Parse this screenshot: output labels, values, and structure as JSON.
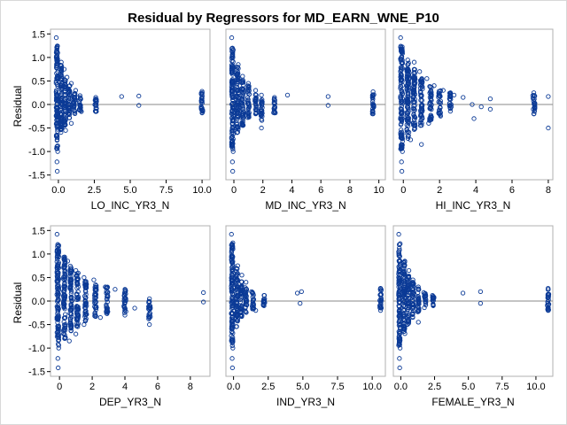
{
  "title": "Residual by Regressors for MD_EARN_WNE_P10",
  "ylabel": "Residual",
  "colors": {
    "marker": "#0b3a96",
    "reference_line": "#8a8a8a",
    "frame": "#b0b0b0"
  },
  "chart_data": [
    {
      "type": "scatter",
      "xlabel": "LO_INC_YR3_N",
      "xticks": [
        "0.0",
        "2.5",
        "5.0",
        "7.5",
        "10.0"
      ],
      "xtick_values": [
        0,
        2.5,
        5,
        7.5,
        10
      ],
      "xlim": [
        -0.55,
        10.55
      ],
      "ylabel": "Residual",
      "yticks": [
        "-1.5",
        "-1.0",
        "-0.5",
        "0.0",
        "0.5",
        "1.0",
        "1.5"
      ],
      "ytick_values": [
        -1.5,
        -1,
        -0.5,
        0,
        0.5,
        1,
        1.5
      ],
      "ylim": [
        -1.6,
        1.6
      ],
      "reference_line_y": 0,
      "points": [
        [
          -0.15,
          1.42
        ],
        [
          -0.1,
          1.2
        ],
        [
          -0.05,
          -1.0
        ],
        [
          -0.1,
          -1.22
        ],
        [
          -0.08,
          -1.42
        ],
        [
          0.2,
          0.9
        ],
        [
          0.4,
          0.75
        ],
        [
          0.6,
          0.58
        ],
        [
          0.9,
          0.45
        ],
        [
          1.2,
          0.3
        ],
        [
          0.5,
          -0.55
        ],
        [
          0.9,
          -0.4
        ],
        [
          1.4,
          0.15
        ],
        [
          1.6,
          -0.15
        ],
        [
          2.6,
          0.15
        ],
        [
          2.6,
          -0.15
        ],
        [
          4.4,
          0.17
        ],
        [
          5.6,
          0.18
        ],
        [
          5.6,
          -0.02
        ],
        [
          10.0,
          0.28
        ],
        [
          10.0,
          -0.18
        ]
      ],
      "clusters": [
        {
          "x": -0.1,
          "y_range": [
            -0.95,
            1.25
          ]
        },
        {
          "x": 0.2,
          "y_range": [
            -0.6,
            0.85
          ]
        },
        {
          "x": 0.45,
          "y_range": [
            -0.45,
            0.55
          ]
        },
        {
          "x": 0.75,
          "y_range": [
            -0.3,
            0.4
          ]
        },
        {
          "x": 1.1,
          "y_range": [
            -0.2,
            0.25
          ]
        },
        {
          "x": 1.5,
          "y_range": [
            -0.15,
            0.2
          ]
        },
        {
          "x": 2.6,
          "y_range": [
            -0.15,
            0.15
          ]
        },
        {
          "x": 10.0,
          "y_range": [
            -0.2,
            0.28
          ]
        }
      ]
    },
    {
      "type": "scatter",
      "xlabel": "MD_INC_YR3_N",
      "xticks": [
        "0",
        "2",
        "4",
        "6",
        "8",
        "10"
      ],
      "xtick_values": [
        0,
        2,
        4,
        6,
        8,
        10
      ],
      "xlim": [
        -0.55,
        10.45
      ],
      "ylim": [
        -1.6,
        1.6
      ],
      "reference_line_y": 0,
      "points": [
        [
          -0.15,
          1.42
        ],
        [
          -0.1,
          1.2
        ],
        [
          -0.05,
          -1.0
        ],
        [
          -0.1,
          -1.22
        ],
        [
          -0.08,
          -1.42
        ],
        [
          0.3,
          0.85
        ],
        [
          0.6,
          0.6
        ],
        [
          1.0,
          0.45
        ],
        [
          1.5,
          0.3
        ],
        [
          1.9,
          -0.5
        ],
        [
          1.9,
          0.2
        ],
        [
          2.8,
          0.15
        ],
        [
          2.8,
          -0.18
        ],
        [
          3.7,
          0.2
        ],
        [
          6.5,
          0.17
        ],
        [
          6.5,
          -0.02
        ],
        [
          9.6,
          0.27
        ],
        [
          9.6,
          -0.2
        ]
      ],
      "clusters": [
        {
          "x": -0.1,
          "y_range": [
            -0.95,
            1.25
          ]
        },
        {
          "x": 0.25,
          "y_range": [
            -0.6,
            0.85
          ]
        },
        {
          "x": 0.6,
          "y_range": [
            -0.45,
            0.55
          ]
        },
        {
          "x": 1.0,
          "y_range": [
            -0.3,
            0.4
          ]
        },
        {
          "x": 1.5,
          "y_range": [
            -0.2,
            0.25
          ]
        },
        {
          "x": 1.9,
          "y_range": [
            -0.35,
            0.15
          ]
        },
        {
          "x": 2.8,
          "y_range": [
            -0.18,
            0.15
          ]
        },
        {
          "x": 9.6,
          "y_range": [
            -0.2,
            0.27
          ]
        }
      ]
    },
    {
      "type": "scatter",
      "xlabel": "HI_INC_YR3_N",
      "xticks": [
        "0",
        "2",
        "4",
        "6",
        "8"
      ],
      "xtick_values": [
        0,
        2,
        4,
        6,
        8
      ],
      "xlim": [
        -0.55,
        8.25
      ],
      "ylim": [
        -1.6,
        1.6
      ],
      "reference_line_y": 0,
      "points": [
        [
          -0.15,
          1.42
        ],
        [
          -0.1,
          1.2
        ],
        [
          -0.05,
          -1.0
        ],
        [
          -0.1,
          -1.22
        ],
        [
          -0.08,
          -1.42
        ],
        [
          0.6,
          0.9
        ],
        [
          0.9,
          0.7
        ],
        [
          1.3,
          0.55
        ],
        [
          1.7,
          0.4
        ],
        [
          2.2,
          0.3
        ],
        [
          2.8,
          0.2
        ],
        [
          3.3,
          0.15
        ],
        [
          3.8,
          0.0
        ],
        [
          4.3,
          -0.05
        ],
        [
          4.8,
          0.12
        ],
        [
          4.8,
          -0.1
        ],
        [
          3.9,
          -0.3
        ],
        [
          1.4,
          -0.4
        ],
        [
          7.2,
          0.25
        ],
        [
          7.2,
          -0.2
        ],
        [
          8.0,
          0.17
        ],
        [
          8.0,
          -0.5
        ],
        [
          1.0,
          -0.85
        ],
        [
          0.4,
          -0.75
        ]
      ],
      "clusters": [
        {
          "x": -0.1,
          "y_range": [
            -0.95,
            1.25
          ]
        },
        {
          "x": 0.25,
          "y_range": [
            -0.75,
            0.95
          ]
        },
        {
          "x": 0.6,
          "y_range": [
            -0.55,
            0.75
          ]
        },
        {
          "x": 1.0,
          "y_range": [
            -0.45,
            0.55
          ]
        },
        {
          "x": 1.5,
          "y_range": [
            -0.35,
            0.4
          ]
        },
        {
          "x": 2.0,
          "y_range": [
            -0.25,
            0.3
          ]
        },
        {
          "x": 2.6,
          "y_range": [
            -0.2,
            0.25
          ]
        },
        {
          "x": 7.2,
          "y_range": [
            -0.2,
            0.25
          ]
        }
      ]
    },
    {
      "type": "scatter",
      "xlabel": "DEP_YR3_N",
      "xticks": [
        "0",
        "2",
        "4",
        "6",
        "8"
      ],
      "xtick_values": [
        0,
        2,
        4,
        6,
        8
      ],
      "xlim": [
        -0.55,
        9.2
      ],
      "ylim": [
        -1.6,
        1.6
      ],
      "reference_line_y": 0,
      "points": [
        [
          -0.15,
          1.42
        ],
        [
          -0.1,
          1.2
        ],
        [
          -0.05,
          -1.0
        ],
        [
          -0.1,
          -1.22
        ],
        [
          -0.08,
          -1.42
        ],
        [
          0.5,
          0.85
        ],
        [
          1.0,
          0.65
        ],
        [
          1.5,
          0.5
        ],
        [
          2.1,
          0.45
        ],
        [
          2.8,
          0.3
        ],
        [
          3.4,
          0.25
        ],
        [
          4.0,
          0.2
        ],
        [
          4.0,
          -0.3
        ],
        [
          2.5,
          -0.35
        ],
        [
          1.5,
          -0.5
        ],
        [
          1.0,
          -0.7
        ],
        [
          5.5,
          0.05
        ],
        [
          5.5,
          -0.5
        ],
        [
          4.6,
          -0.15
        ],
        [
          8.8,
          0.18
        ],
        [
          8.8,
          -0.02
        ],
        [
          0.6,
          -0.85
        ]
      ],
      "clusters": [
        {
          "x": -0.1,
          "y_range": [
            -0.95,
            1.25
          ]
        },
        {
          "x": 0.3,
          "y_range": [
            -0.8,
            0.95
          ]
        },
        {
          "x": 0.7,
          "y_range": [
            -0.65,
            0.75
          ]
        },
        {
          "x": 1.1,
          "y_range": [
            -0.55,
            0.6
          ]
        },
        {
          "x": 1.6,
          "y_range": [
            -0.45,
            0.45
          ]
        },
        {
          "x": 2.2,
          "y_range": [
            -0.35,
            0.35
          ]
        },
        {
          "x": 2.9,
          "y_range": [
            -0.3,
            0.3
          ]
        },
        {
          "x": 4.0,
          "y_range": [
            -0.25,
            0.25
          ]
        },
        {
          "x": 5.5,
          "y_range": [
            -0.4,
            0.0
          ]
        }
      ]
    },
    {
      "type": "scatter",
      "xlabel": "IND_YR3_N",
      "xticks": [
        "0.0",
        "2.5",
        "5.0",
        "7.5",
        "10.0"
      ],
      "xtick_values": [
        0,
        2.5,
        5,
        7.5,
        10
      ],
      "xlim": [
        -0.55,
        10.95
      ],
      "ylim": [
        -1.6,
        1.6
      ],
      "reference_line_y": 0,
      "points": [
        [
          -0.15,
          1.42
        ],
        [
          -0.1,
          1.2
        ],
        [
          -0.05,
          -1.0
        ],
        [
          -0.1,
          -1.22
        ],
        [
          -0.08,
          -1.42
        ],
        [
          0.3,
          0.75
        ],
        [
          0.6,
          0.55
        ],
        [
          0.9,
          0.4
        ],
        [
          1.3,
          0.2
        ],
        [
          1.6,
          -0.2
        ],
        [
          2.2,
          0.12
        ],
        [
          2.2,
          -0.1
        ],
        [
          4.6,
          0.17
        ],
        [
          4.9,
          0.2
        ],
        [
          4.8,
          -0.05
        ],
        [
          10.6,
          0.27
        ],
        [
          10.6,
          -0.2
        ]
      ],
      "clusters": [
        {
          "x": -0.1,
          "y_range": [
            -0.95,
            1.25
          ]
        },
        {
          "x": 0.25,
          "y_range": [
            -0.55,
            0.7
          ]
        },
        {
          "x": 0.55,
          "y_range": [
            -0.35,
            0.45
          ]
        },
        {
          "x": 0.9,
          "y_range": [
            -0.25,
            0.3
          ]
        },
        {
          "x": 1.4,
          "y_range": [
            -0.18,
            0.2
          ]
        },
        {
          "x": 2.2,
          "y_range": [
            -0.12,
            0.12
          ]
        },
        {
          "x": 10.6,
          "y_range": [
            -0.2,
            0.27
          ]
        }
      ]
    },
    {
      "type": "scatter",
      "xlabel": "FEMALE_YR3_N",
      "xticks": [
        "0.0",
        "2.5",
        "5.0",
        "7.5",
        "10.0"
      ],
      "xtick_values": [
        0,
        2.5,
        5,
        7.5,
        10
      ],
      "xlim": [
        -0.55,
        11.25
      ],
      "ylim": [
        -1.6,
        1.6
      ],
      "reference_line_y": 0,
      "points": [
        [
          -0.15,
          1.42
        ],
        [
          -0.1,
          1.2
        ],
        [
          -0.05,
          -1.0
        ],
        [
          -0.1,
          -1.22
        ],
        [
          -0.08,
          -1.42
        ],
        [
          0.3,
          0.85
        ],
        [
          0.6,
          0.65
        ],
        [
          0.9,
          0.45
        ],
        [
          1.3,
          0.3
        ],
        [
          1.7,
          0.18
        ],
        [
          1.3,
          -0.45
        ],
        [
          2.4,
          0.1
        ],
        [
          2.4,
          -0.1
        ],
        [
          4.6,
          0.17
        ],
        [
          5.9,
          0.2
        ],
        [
          5.9,
          -0.05
        ],
        [
          10.9,
          0.27
        ],
        [
          10.9,
          -0.2
        ]
      ],
      "clusters": [
        {
          "x": -0.1,
          "y_range": [
            -0.95,
            1.25
          ]
        },
        {
          "x": 0.25,
          "y_range": [
            -0.7,
            0.85
          ]
        },
        {
          "x": 0.55,
          "y_range": [
            -0.5,
            0.6
          ]
        },
        {
          "x": 0.9,
          "y_range": [
            -0.35,
            0.4
          ]
        },
        {
          "x": 1.3,
          "y_range": [
            -0.25,
            0.28
          ]
        },
        {
          "x": 1.8,
          "y_range": [
            -0.15,
            0.18
          ]
        },
        {
          "x": 2.4,
          "y_range": [
            -0.1,
            0.12
          ]
        },
        {
          "x": 10.9,
          "y_range": [
            -0.2,
            0.27
          ]
        }
      ]
    }
  ]
}
